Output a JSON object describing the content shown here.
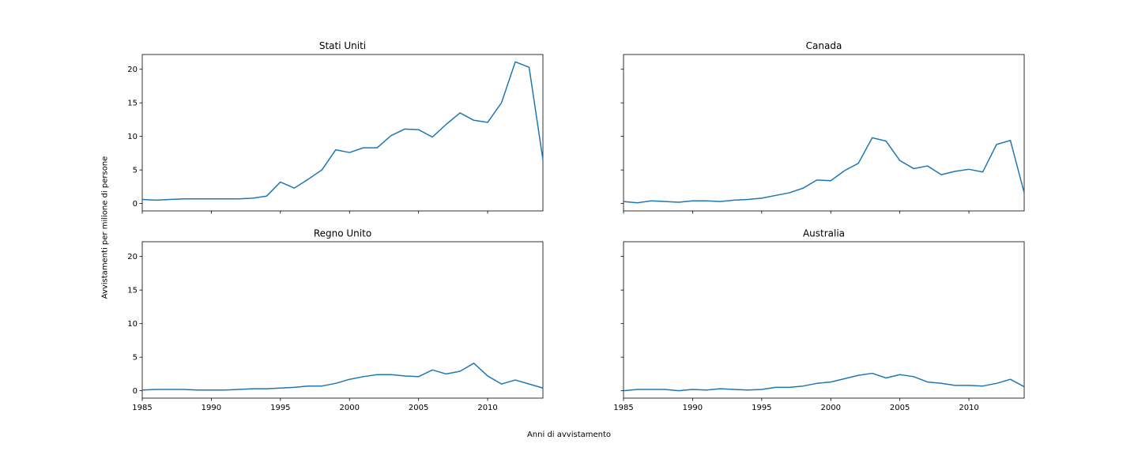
{
  "chart_data": {
    "type": "line",
    "xlabel": "Anni di avvistamento",
    "ylabel": "Avvistamenti per milione di persone",
    "xlim": [
      1985,
      2014
    ],
    "ylim": [
      -1.1,
      22.2
    ],
    "xticks": [
      1985,
      1990,
      1995,
      2000,
      2005,
      2010
    ],
    "yticks": [
      0,
      5,
      10,
      15,
      20
    ],
    "line_color": "#1f77b4",
    "grid": false,
    "panels": [
      {
        "title": "Stati Uniti",
        "x": [
          1985,
          1986,
          1987,
          1988,
          1989,
          1990,
          1991,
          1992,
          1993,
          1994,
          1995,
          1996,
          1997,
          1998,
          1999,
          2000,
          2001,
          2002,
          2003,
          2004,
          2005,
          2006,
          2007,
          2008,
          2009,
          2010,
          2011,
          2012,
          2013,
          2014
        ],
        "values": [
          0.6,
          0.5,
          0.6,
          0.7,
          0.7,
          0.7,
          0.7,
          0.7,
          0.8,
          1.1,
          3.2,
          2.3,
          3.6,
          5.0,
          8.0,
          7.6,
          8.3,
          8.3,
          10.1,
          11.1,
          11.0,
          9.9,
          11.8,
          13.5,
          12.4,
          12.1,
          15.0,
          21.1,
          20.3,
          6.5
        ]
      },
      {
        "title": "Canada",
        "x": [
          1985,
          1986,
          1987,
          1988,
          1989,
          1990,
          1991,
          1992,
          1993,
          1994,
          1995,
          1996,
          1997,
          1998,
          1999,
          2000,
          2001,
          2002,
          2003,
          2004,
          2005,
          2006,
          2007,
          2008,
          2009,
          2010,
          2011,
          2012,
          2013,
          2014
        ],
        "values": [
          0.3,
          0.1,
          0.4,
          0.3,
          0.2,
          0.4,
          0.4,
          0.3,
          0.5,
          0.6,
          0.8,
          1.2,
          1.6,
          2.3,
          3.5,
          3.4,
          4.9,
          6.0,
          9.8,
          9.3,
          6.4,
          5.2,
          5.6,
          4.3,
          4.8,
          5.1,
          4.7,
          8.8,
          9.4,
          1.6
        ]
      },
      {
        "title": "Regno Unito",
        "x": [
          1985,
          1986,
          1987,
          1988,
          1989,
          1990,
          1991,
          1992,
          1993,
          1994,
          1995,
          1996,
          1997,
          1998,
          1999,
          2000,
          2001,
          2002,
          2003,
          2004,
          2005,
          2006,
          2007,
          2008,
          2009,
          2010,
          2011,
          2012,
          2013,
          2014
        ],
        "values": [
          0.1,
          0.2,
          0.2,
          0.2,
          0.1,
          0.1,
          0.1,
          0.2,
          0.3,
          0.3,
          0.4,
          0.5,
          0.7,
          0.7,
          1.1,
          1.7,
          2.1,
          2.4,
          2.4,
          2.2,
          2.1,
          3.1,
          2.5,
          2.9,
          4.1,
          2.2,
          1.0,
          1.6,
          1.0,
          0.4
        ]
      },
      {
        "title": "Australia",
        "x": [
          1985,
          1986,
          1987,
          1988,
          1989,
          1990,
          1991,
          1992,
          1993,
          1994,
          1995,
          1996,
          1997,
          1998,
          1999,
          2000,
          2001,
          2002,
          2003,
          2004,
          2005,
          2006,
          2007,
          2008,
          2009,
          2010,
          2011,
          2012,
          2013,
          2014
        ],
        "values": [
          0.0,
          0.2,
          0.2,
          0.2,
          0.0,
          0.2,
          0.1,
          0.3,
          0.2,
          0.1,
          0.2,
          0.5,
          0.5,
          0.7,
          1.1,
          1.3,
          1.8,
          2.3,
          2.6,
          1.9,
          2.4,
          2.1,
          1.3,
          1.1,
          0.8,
          0.8,
          0.7,
          1.1,
          1.7,
          0.6
        ]
      }
    ]
  }
}
